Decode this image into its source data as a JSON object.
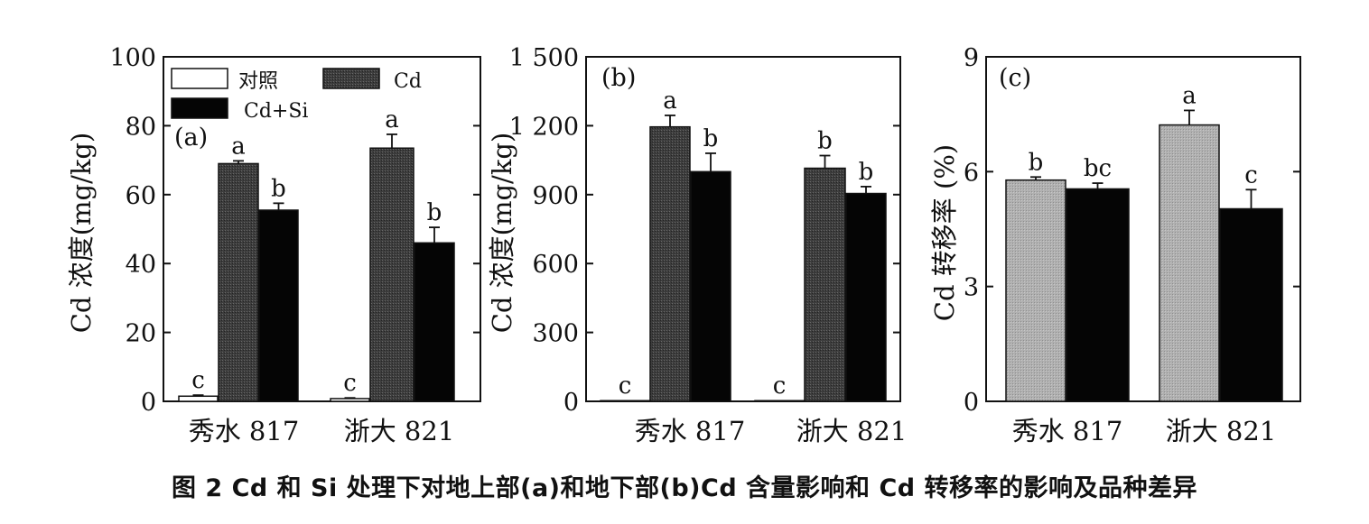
{
  "caption": "图 2  Cd 和 Si 处理下对地上部(a)和地下部(b)Cd 含量影响和 Cd 转移率的影响及品种差异",
  "colors": {
    "control": "#ffffff",
    "cd": "#3d3d3d",
    "cdsi": "#050505",
    "transfer": "#b0b0b0",
    "axis": "#111111"
  },
  "chart_data": [
    {
      "panel": "(a)",
      "type": "bar",
      "ylabel": "Cd 浓度(mg/kg)",
      "ylim": [
        0,
        100
      ],
      "yticks": [
        0,
        20,
        40,
        60,
        80,
        100
      ],
      "ytick_labels": [
        "0",
        "20",
        "40",
        "60",
        "80",
        "100"
      ],
      "categories": [
        "秀水 817",
        "浙大 821"
      ],
      "legend": [
        {
          "label": "对照",
          "key": "control"
        },
        {
          "label": "Cd",
          "key": "cd"
        },
        {
          "label": "Cd+Si",
          "key": "cdsi"
        }
      ],
      "series": [
        {
          "name": "对照",
          "key": "control",
          "values": [
            1.5,
            0.8
          ],
          "errors": [
            0.3,
            0.2
          ],
          "letters": [
            "c",
            "c"
          ]
        },
        {
          "name": "Cd",
          "key": "cd",
          "values": [
            69,
            73.5
          ],
          "errors": [
            0.8,
            4
          ],
          "letters": [
            "a",
            "a"
          ]
        },
        {
          "name": "Cd+Si",
          "key": "cdsi",
          "values": [
            55.5,
            46
          ],
          "errors": [
            2,
            4.5
          ],
          "letters": [
            "b",
            "b"
          ]
        }
      ]
    },
    {
      "panel": "(b)",
      "type": "bar",
      "ylabel": "Cd 浓度(mg/kg)",
      "ylim": [
        0,
        1500
      ],
      "yticks": [
        0,
        300,
        600,
        900,
        1200,
        1500
      ],
      "ytick_labels": [
        "0",
        "300",
        "600",
        "900",
        "1 200",
        "1 500"
      ],
      "categories": [
        "秀水 817",
        "浙大 821"
      ],
      "series": [
        {
          "name": "对照",
          "key": "control",
          "values": [
            3,
            3
          ],
          "errors": [
            0,
            0
          ],
          "letters": [
            "c",
            "c"
          ]
        },
        {
          "name": "Cd",
          "key": "cd",
          "values": [
            1195,
            1015
          ],
          "errors": [
            50,
            55
          ],
          "letters": [
            "a",
            "b"
          ]
        },
        {
          "name": "Cd+Si",
          "key": "cdsi",
          "values": [
            1000,
            905
          ],
          "errors": [
            80,
            30
          ],
          "letters": [
            "b",
            "b"
          ]
        }
      ]
    },
    {
      "panel": "(c)",
      "type": "bar",
      "ylabel": "Cd 转移率 (%)",
      "ylim": [
        0,
        9
      ],
      "yticks": [
        0,
        3,
        6,
        9
      ],
      "ytick_labels": [
        "0",
        "3",
        "6",
        "9"
      ],
      "categories": [
        "秀水 817",
        "浙大 821"
      ],
      "series": [
        {
          "name": "Cd",
          "key": "transfer",
          "values": [
            5.78,
            7.22
          ],
          "errors": [
            0.08,
            0.38
          ],
          "letters": [
            "b",
            "a"
          ]
        },
        {
          "name": "Cd+Si",
          "key": "cdsi",
          "values": [
            5.55,
            5.03
          ],
          "errors": [
            0.15,
            0.5
          ],
          "letters": [
            "bc",
            "c"
          ]
        }
      ]
    }
  ]
}
